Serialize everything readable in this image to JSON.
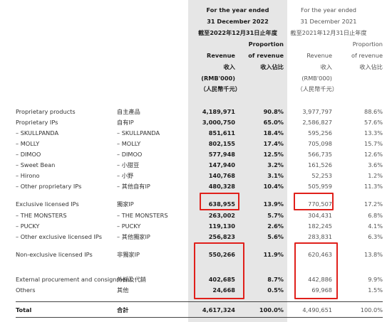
{
  "header": {
    "cur_period_1": "For the year ended",
    "cur_period_2": "31 December 2022",
    "cur_period_cn": "截至2022年12月31日止年度",
    "prev_period_1": "For the year ended",
    "prev_period_2": "31 December 2021",
    "prev_period_cn": "截至2021年12月31日止年度",
    "proportion_1": "Proportion",
    "proportion_2": "of revenue",
    "proportion_cn": "收入佔比",
    "revenue_en": "Revenue",
    "revenue_cn": "收入",
    "unit_en": "(RMB'000)",
    "unit_cn": "（人民幣千元）"
  },
  "rows": [
    {
      "en": "Proprietary products",
      "cn": "自主產品",
      "v2022": "4,189,971",
      "p2022": "90.8%",
      "v2021": "3,977,797",
      "p2021": "88.6%"
    },
    {
      "en": "Proprietary IPs",
      "cn": "自有IP",
      "v2022": "3,000,750",
      "p2022": "65.0%",
      "v2021": "2,586,827",
      "p2021": "57.6%"
    },
    {
      "en": "– SKULLPANDA",
      "cn": "– SKULLPANDA",
      "v2022": "851,611",
      "p2022": "18.4%",
      "v2021": "595,256",
      "p2021": "13.3%"
    },
    {
      "en": "– MOLLY",
      "cn": "– MOLLY",
      "v2022": "802,155",
      "p2022": "17.4%",
      "v2021": "705,098",
      "p2021": "15.7%"
    },
    {
      "en": "– DIMOO",
      "cn": "– DIMOO",
      "v2022": "577,948",
      "p2022": "12.5%",
      "v2021": "566,735",
      "p2021": "12.6%"
    },
    {
      "en": "– Sweet Bean",
      "cn": "– 小甜豆",
      "v2022": "147,940",
      "p2022": "3.2%",
      "v2021": "161,526",
      "p2021": "3.6%"
    },
    {
      "en": "– Hirono",
      "cn": "– 小野",
      "v2022": "140,768",
      "p2022": "3.1%",
      "v2021": "52,253",
      "p2021": "1.2%"
    },
    {
      "en": "– Other proprietary IPs",
      "cn": "– 其他自有IP",
      "v2022": "480,328",
      "p2022": "10.4%",
      "v2021": "505,959",
      "p2021": "11.3%"
    },
    {
      "en": "Exclusive licensed IPs",
      "cn": "獨家IP",
      "v2022": "638,955",
      "p2022": "13.9%",
      "v2021": "770,507",
      "p2021": "17.2%"
    },
    {
      "en": "– THE MONSTERS",
      "cn": "– THE MONSTERS",
      "v2022": "263,002",
      "p2022": "5.7%",
      "v2021": "304,431",
      "p2021": "6.8%"
    },
    {
      "en": "– PUCKY",
      "cn": "– PUCKY",
      "v2022": "119,130",
      "p2022": "2.6%",
      "v2021": "182,245",
      "p2021": "4.1%"
    },
    {
      "en": "– Other exclusive licensed IPs",
      "cn": "– 其他獨家IP",
      "v2022": "256,823",
      "p2022": "5.6%",
      "v2021": "283,831",
      "p2021": "6.3%"
    },
    {
      "en": "Non-exclusive licensed IPs",
      "cn": "非獨家IP",
      "v2022": "550,266",
      "p2022": "11.9%",
      "v2021": "620,463",
      "p2021": "13.8%"
    },
    {
      "en": "External procurement and consignment",
      "cn": "外採及代銷",
      "v2022": "402,685",
      "p2022": "8.7%",
      "v2021": "442,886",
      "p2021": "9.9%"
    },
    {
      "en": "Others",
      "cn": "其他",
      "v2022": "24,668",
      "p2022": "0.5%",
      "v2021": "69,968",
      "p2021": "1.5%"
    }
  ],
  "total": {
    "en": "Total",
    "cn": "合計",
    "v2022": "4,617,324",
    "p2022": "100.0%",
    "v2021": "4,490,651",
    "p2021": "100.0%"
  }
}
